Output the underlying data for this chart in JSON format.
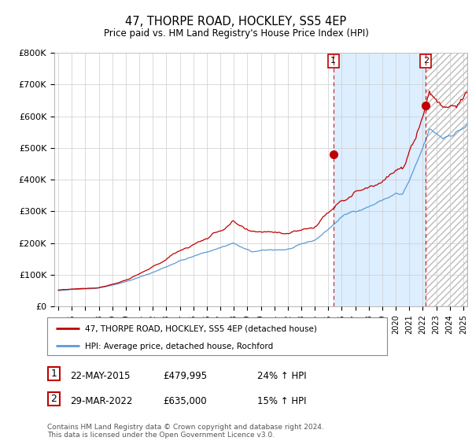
{
  "title": "47, THORPE ROAD, HOCKLEY, SS5 4EP",
  "subtitle": "Price paid vs. HM Land Registry's House Price Index (HPI)",
  "ylim": [
    0,
    800000
  ],
  "yticks": [
    0,
    100000,
    200000,
    300000,
    400000,
    500000,
    600000,
    700000,
    800000
  ],
  "ytick_labels": [
    "£0",
    "£100K",
    "£200K",
    "£300K",
    "£400K",
    "£500K",
    "£600K",
    "£700K",
    "£800K"
  ],
  "hpi_color": "#5b9bd5",
  "price_color": "#c00000",
  "marker1_date_x": 2015.38,
  "marker1_price": 479995,
  "marker2_date_x": 2022.23,
  "marker2_price": 635000,
  "shade_color": "#ddeeff",
  "legend_line1": "47, THORPE ROAD, HOCKLEY, SS5 4EP (detached house)",
  "legend_line2": "HPI: Average price, detached house, Rochford",
  "table_rows": [
    {
      "num": "1",
      "date": "22-MAY-2015",
      "price": "£479,995",
      "change": "24% ↑ HPI"
    },
    {
      "num": "2",
      "date": "29-MAR-2022",
      "price": "£635,000",
      "change": "15% ↑ HPI"
    }
  ],
  "footer": "Contains HM Land Registry data © Crown copyright and database right 2024.\nThis data is licensed under the Open Government Licence v3.0.",
  "grid_color": "#cccccc",
  "xlim_left": 1994.7,
  "xlim_right": 2025.3
}
